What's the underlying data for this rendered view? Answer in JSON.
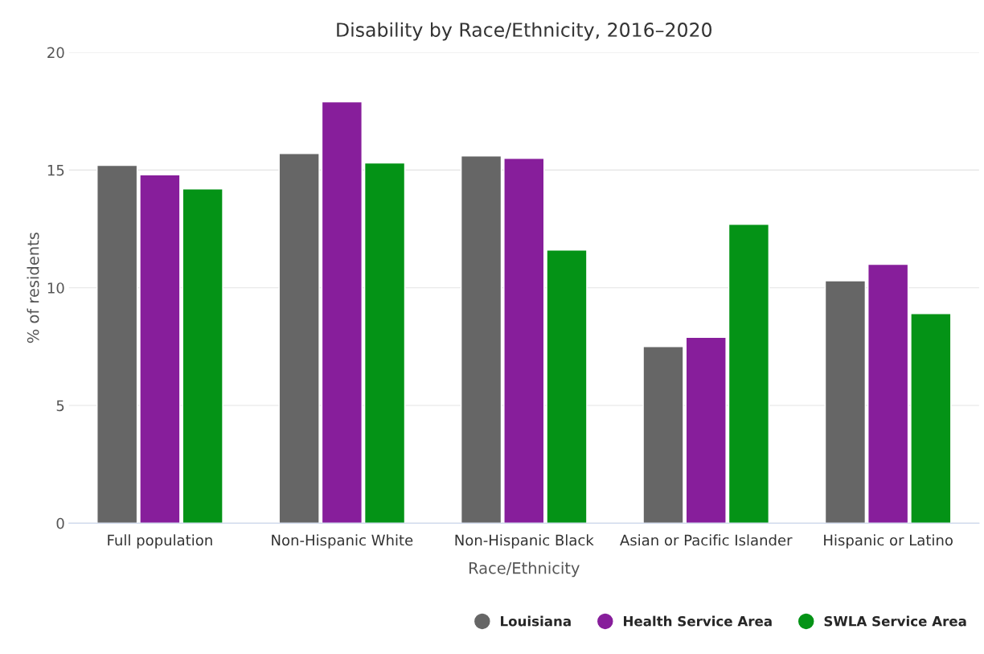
{
  "chart_data": {
    "type": "bar",
    "title": "Disability by Race/Ethnicity, 2016–2020",
    "xlabel": "Race/Ethnicity",
    "ylabel": "% of residents",
    "categories": [
      "Full population",
      "Non-Hispanic White",
      "Non-Hispanic Black",
      "Asian or Pacific Islander",
      "Hispanic or Latino"
    ],
    "series": [
      {
        "name": "Louisiana",
        "color": "#666666",
        "values": [
          15.2,
          15.7,
          15.6,
          7.5,
          10.3
        ]
      },
      {
        "name": "Health Service Area",
        "color": "#871e9b",
        "values": [
          14.8,
          17.9,
          15.5,
          7.9,
          11.0
        ]
      },
      {
        "name": "SWLA Service Area",
        "color": "#049316",
        "values": [
          14.2,
          15.3,
          11.6,
          12.7,
          8.9
        ]
      }
    ],
    "ylim": [
      0,
      20
    ],
    "yticks": [
      0,
      5,
      10,
      15,
      20
    ],
    "grid": "y",
    "legend": "bottom right",
    "marker": "circle"
  }
}
